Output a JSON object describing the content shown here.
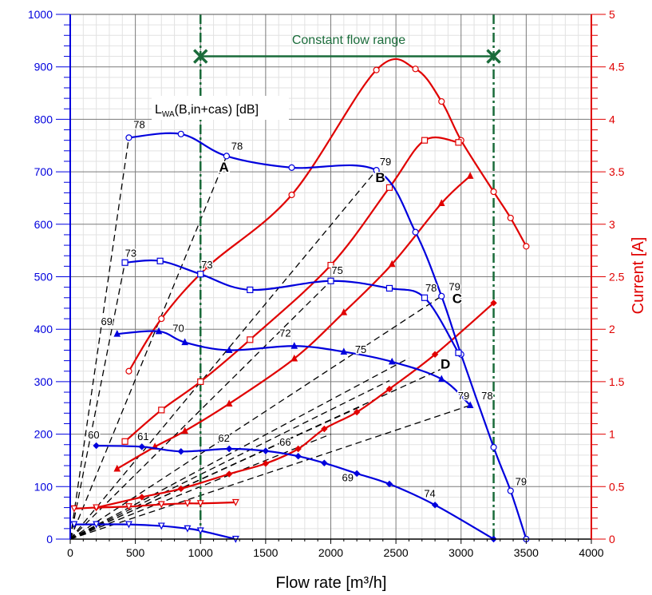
{
  "chart_data": {
    "type": "line",
    "xlabel": "Flow rate [m³/h]",
    "ylabel_right": "Current [A]",
    "xlim": [
      0,
      4000
    ],
    "ylim_left": [
      0,
      1000
    ],
    "ylim_right": [
      0,
      5
    ],
    "x_ticks": [
      "0",
      "500",
      "1000",
      "1500",
      "2000",
      "2500",
      "3000",
      "3500",
      "4000"
    ],
    "y_left_ticks": [
      "0",
      "100",
      "200",
      "300",
      "400",
      "500",
      "600",
      "700",
      "800",
      "900",
      "1000"
    ],
    "y_right_ticks": [
      "0",
      "0.5",
      "1",
      "1.5",
      "2",
      "2.5",
      "3",
      "3.5",
      "4",
      "4.5",
      "5"
    ],
    "grid": true,
    "colors": {
      "pressure": "#0000dd",
      "current": "#e00000",
      "range": "#1a6b3a",
      "lwa": "#000000",
      "left_axis": "#0000dd",
      "right_axis": "#e00000"
    },
    "annotations": {
      "range_title": "Constant flow range",
      "range_x": [
        1000,
        3250
      ],
      "lwa_label_main": "L",
      "lwa_label_sub": "WA",
      "lwa_label_rest": "(B,in+cas) [dB]",
      "curve_letters": [
        {
          "text": "A",
          "x": 1180,
          "y": 700
        },
        {
          "text": "B",
          "x": 2380,
          "y": 680
        },
        {
          "text": "C",
          "x": 2970,
          "y": 450
        },
        {
          "text": "D",
          "x": 2880,
          "y": 325
        }
      ]
    },
    "pressure_series": [
      {
        "marker": "circle",
        "x": [
          450,
          850,
          1200,
          1700,
          2350,
          2650,
          2850,
          3000,
          3250,
          3380,
          3500
        ],
        "y": [
          765,
          772,
          730,
          708,
          703,
          585,
          463,
          352,
          175,
          92,
          0
        ]
      },
      {
        "marker": "square",
        "x": [
          420,
          690,
          1000,
          1380,
          2000,
          2450,
          2720,
          2980
        ],
        "y": [
          527,
          530,
          505,
          475,
          492,
          478,
          460,
          355
        ]
      },
      {
        "marker": "triangle",
        "x": [
          360,
          680,
          880,
          1220,
          1720,
          2100,
          2470,
          2850,
          3070
        ],
        "y": [
          391,
          396,
          375,
          360,
          368,
          357,
          338,
          305,
          255
        ]
      },
      {
        "marker": "diamond",
        "x": [
          200,
          550,
          850,
          1220,
          1500,
          1750,
          1950,
          2200,
          2450,
          2800,
          3250
        ],
        "y": [
          178,
          176,
          167,
          172,
          168,
          158,
          145,
          125,
          105,
          65,
          0
        ]
      },
      {
        "marker": "triangle-down",
        "x": [
          30,
          200,
          450,
          700,
          900,
          1000,
          1270
        ],
        "y": [
          28,
          28,
          28,
          25,
          20,
          16,
          0
        ]
      }
    ],
    "current_series": [
      {
        "marker": "circle",
        "x": [
          450,
          700,
          1060,
          1700,
          2350,
          2650,
          2850,
          3000,
          3250,
          3380,
          3500
        ],
        "y": [
          1.6,
          2.1,
          2.6,
          3.28,
          4.47,
          4.48,
          4.17,
          3.8,
          3.31,
          3.06,
          2.79
        ]
      },
      {
        "marker": "square",
        "x": [
          420,
          700,
          1000,
          1380,
          2000,
          2450,
          2720,
          2980
        ],
        "y": [
          0.93,
          1.23,
          1.5,
          1.9,
          2.61,
          3.35,
          3.8,
          3.78
        ]
      },
      {
        "marker": "triangle",
        "x": [
          360,
          650,
          880,
          1220,
          1720,
          2100,
          2470,
          2850,
          3070
        ],
        "y": [
          0.67,
          0.88,
          1.03,
          1.29,
          1.72,
          2.16,
          2.62,
          3.2,
          3.46
        ]
      },
      {
        "marker": "diamond",
        "x": [
          200,
          550,
          850,
          1220,
          1500,
          1750,
          1950,
          2200,
          2450,
          2800,
          3250
        ],
        "y": [
          0.3,
          0.4,
          0.48,
          0.62,
          0.72,
          0.86,
          1.05,
          1.21,
          1.43,
          1.76,
          2.25
        ]
      },
      {
        "marker": "triangle-down",
        "x": [
          30,
          200,
          450,
          700,
          900,
          1000,
          1270
        ],
        "y": [
          0.29,
          0.3,
          0.31,
          0.33,
          0.34,
          0.34,
          0.35
        ]
      }
    ],
    "lwa_lines": [
      {
        "x": [
          0,
          450
        ],
        "y": [
          0,
          765
        ]
      },
      {
        "x": [
          0,
          1200
        ],
        "y": [
          0,
          730
        ]
      },
      {
        "x": [
          0,
          2350
        ],
        "y": [
          0,
          703
        ]
      },
      {
        "x": [
          0,
          2850
        ],
        "y": [
          0,
          463
        ]
      },
      {
        "x": [
          0,
          2900
        ],
        "y": [
          0,
          330
        ]
      },
      {
        "x": [
          0,
          3070
        ],
        "y": [
          0,
          255
        ]
      },
      {
        "x": [
          0,
          2000
        ],
        "y": [
          0,
          492
        ]
      },
      {
        "x": [
          0,
          420
        ],
        "y": [
          0,
          527
        ]
      },
      {
        "x": [
          0,
          2600
        ],
        "y": [
          0,
          345
        ]
      },
      {
        "x": [
          0,
          2450
        ],
        "y": [
          0,
          302
        ]
      },
      {
        "x": [
          0,
          2250
        ],
        "y": [
          0,
          255
        ]
      },
      {
        "x": [
          0,
          2000
        ],
        "y": [
          0,
          200
        ]
      }
    ],
    "lwa_values": [
      {
        "text": "78",
        "x": 530,
        "y": 783
      },
      {
        "text": "78",
        "x": 1280,
        "y": 742
      },
      {
        "text": "79",
        "x": 2420,
        "y": 712
      },
      {
        "text": "73",
        "x": 465,
        "y": 538
      },
      {
        "text": "73",
        "x": 1050,
        "y": 516
      },
      {
        "text": "75",
        "x": 2050,
        "y": 505
      },
      {
        "text": "78",
        "x": 2770,
        "y": 472
      },
      {
        "text": "79",
        "x": 2950,
        "y": 474
      },
      {
        "text": "69",
        "x": 280,
        "y": 408
      },
      {
        "text": "70",
        "x": 830,
        "y": 395
      },
      {
        "text": "72",
        "x": 1650,
        "y": 386
      },
      {
        "text": "75",
        "x": 2230,
        "y": 355
      },
      {
        "text": "79",
        "x": 3020,
        "y": 266
      },
      {
        "text": "78",
        "x": 3200,
        "y": 266
      },
      {
        "text": "60",
        "x": 180,
        "y": 192
      },
      {
        "text": "61",
        "x": 560,
        "y": 189
      },
      {
        "text": "62",
        "x": 1180,
        "y": 186
      },
      {
        "text": "66",
        "x": 1650,
        "y": 178
      },
      {
        "text": "69",
        "x": 2130,
        "y": 110
      },
      {
        "text": "74",
        "x": 2760,
        "y": 80
      },
      {
        "text": "79",
        "x": 3460,
        "y": 103
      }
    ]
  }
}
